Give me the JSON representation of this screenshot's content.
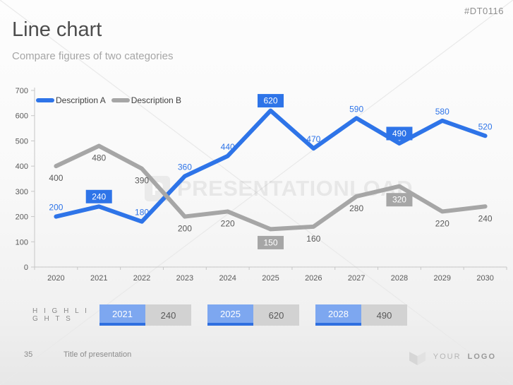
{
  "header": {
    "code": "#DT0116",
    "title": "Line chart",
    "subtitle": "Compare figures of two categories"
  },
  "chart_data": {
    "type": "line",
    "categories": [
      "2020",
      "2021",
      "2022",
      "2023",
      "2024",
      "2025",
      "2026",
      "2027",
      "2028",
      "2029",
      "2030"
    ],
    "series": [
      {
        "name": "Description A",
        "color": "#2e74e8",
        "label_color": "#2e74e8",
        "label_position": "above",
        "values": [
          200,
          240,
          180,
          360,
          440,
          620,
          470,
          590,
          490,
          580,
          520
        ],
        "boxed_value_indices": [
          1,
          5,
          8
        ]
      },
      {
        "name": "Description B",
        "color": "#a6a6a6",
        "label_color": "#595959",
        "label_position": "below",
        "values": [
          400,
          480,
          390,
          200,
          220,
          150,
          160,
          280,
          320,
          220,
          240
        ],
        "boxed_value_indices": [
          5,
          8
        ]
      }
    ],
    "title": "",
    "xlabel": "",
    "ylabel": "",
    "ylim": [
      0,
      700
    ],
    "ytick_step": 100,
    "grid": false,
    "legend_position": "top-left",
    "axis_text_color": "#595959",
    "axis_line_color": "#c6c6c6",
    "boxed_label_text_color": "#ffffff"
  },
  "watermark": {
    "logo_letter": "P",
    "text": "PRESENTATIONLOAD"
  },
  "highlights": {
    "label": "H I G H L I G H T S",
    "items": [
      {
        "year": "2021",
        "value": "240"
      },
      {
        "year": "2025",
        "value": "620"
      },
      {
        "year": "2028",
        "value": "490"
      }
    ]
  },
  "footer": {
    "page_number": "35",
    "presentation_title": "Title of presentation",
    "logo_text_light": "YOUR",
    "logo_text_bold": "LOGO"
  }
}
